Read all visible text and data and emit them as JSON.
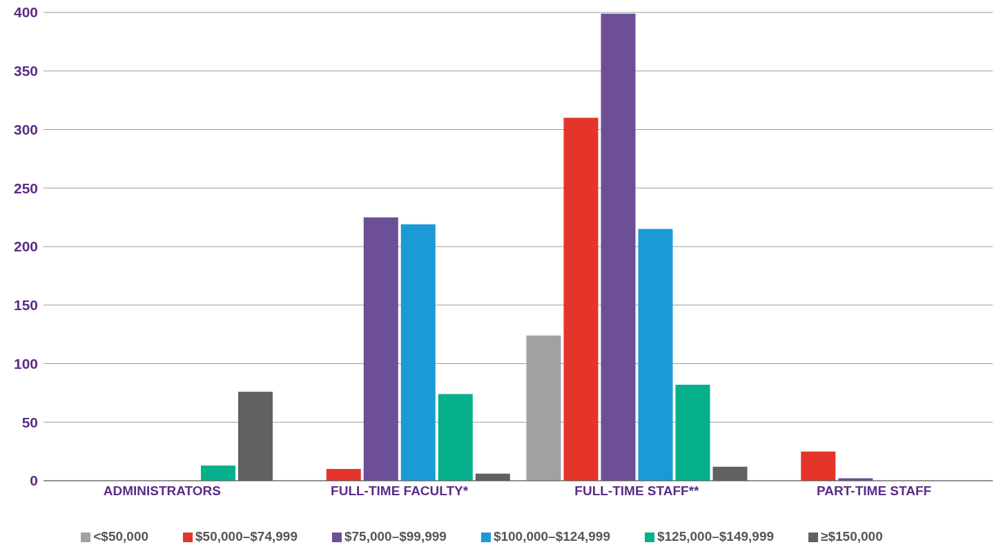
{
  "chart_data": {
    "type": "bar",
    "categories": [
      "ADMINISTRATORS",
      "FULL-TIME FACULTY*",
      "FULL-TIME STAFF**",
      "PART-TIME STAFF"
    ],
    "series": [
      {
        "name": "<$50,000",
        "color": "#a1a1a4",
        "values": [
          0,
          0,
          124,
          0
        ]
      },
      {
        "name": "$50,000–$74,999",
        "color": "#e5352b",
        "values": [
          0,
          10,
          310,
          25
        ]
      },
      {
        "name": "$75,000–$99,999",
        "color": "#6c4f96",
        "values": [
          0,
          225,
          399,
          2
        ]
      },
      {
        "name": "$100,000–$124,999",
        "color": "#1b9ad6",
        "values": [
          0,
          219,
          215,
          0
        ]
      },
      {
        "name": "$125,000–$149,999",
        "color": "#06b08a",
        "values": [
          13,
          74,
          82,
          0
        ]
      },
      {
        "name": "≥$150,000",
        "color": "#616163",
        "values": [
          76,
          6,
          12,
          0
        ]
      }
    ],
    "ylim": [
      0,
      400
    ],
    "yticks": [
      0,
      50,
      100,
      150,
      200,
      250,
      300,
      350,
      400
    ],
    "grid": "y",
    "legend": "bottom"
  }
}
